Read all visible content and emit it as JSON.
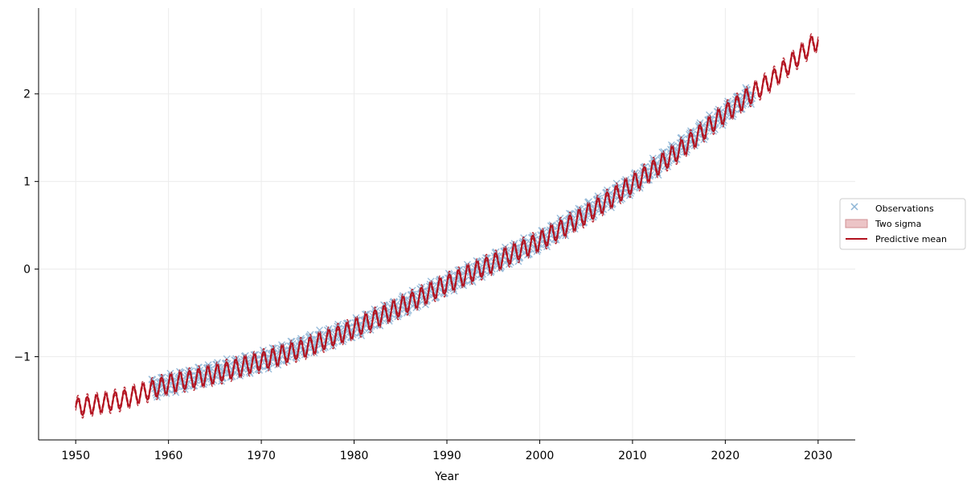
{
  "chart_data": {
    "type": "line",
    "title": "",
    "xlabel": "Year",
    "ylabel": "",
    "xlim": [
      1946,
      2034
    ],
    "ylim": [
      -1.95,
      2.98
    ],
    "x_ticks": [
      1950,
      1960,
      1970,
      1980,
      1990,
      2000,
      2010,
      2020,
      2030
    ],
    "y_ticks": [
      -1,
      0,
      1,
      2
    ],
    "y_tick_labels": [
      "−1",
      "0",
      "1",
      "2"
    ],
    "grid": true,
    "legend_position": "right",
    "series": [
      {
        "name": "Observations",
        "kind": "scatter-x",
        "x_range": [
          1958.2,
          2023.0
        ],
        "trend_points": [
          [
            1958,
            -1.37
          ],
          [
            1960,
            -1.31
          ],
          [
            1970,
            -1.05
          ],
          [
            1980,
            -0.68
          ],
          [
            1990,
            -0.17
          ],
          [
            2000,
            0.32
          ],
          [
            2010,
            0.97
          ],
          [
            2020,
            1.78
          ],
          [
            2023,
            2.02
          ]
        ],
        "seasonal_amplitude": 0.1
      },
      {
        "name": "Two sigma",
        "kind": "band",
        "x_range": [
          1950,
          2030
        ],
        "half_width": 0.035
      },
      {
        "name": "Predictive mean",
        "kind": "line",
        "x_range": [
          1950,
          2030
        ],
        "trend_points": [
          [
            1950,
            -1.58
          ],
          [
            1955,
            -1.49
          ],
          [
            1960,
            -1.31
          ],
          [
            1965,
            -1.2
          ],
          [
            1970,
            -1.05
          ],
          [
            1975,
            -0.89
          ],
          [
            1980,
            -0.68
          ],
          [
            1985,
            -0.43
          ],
          [
            1990,
            -0.17
          ],
          [
            1995,
            0.07
          ],
          [
            2000,
            0.32
          ],
          [
            2005,
            0.62
          ],
          [
            2010,
            0.97
          ],
          [
            2015,
            1.35
          ],
          [
            2020,
            1.78
          ],
          [
            2025,
            2.16
          ],
          [
            2030,
            2.62
          ]
        ],
        "seasonal_amplitude": 0.1
      }
    ]
  },
  "legend": {
    "items": [
      {
        "label": "Observations",
        "color": "#8fb6d6"
      },
      {
        "label": "Two sigma",
        "color": "#e5b0b3"
      },
      {
        "label": "Predictive mean",
        "color": "#b3121f"
      }
    ]
  },
  "colors": {
    "observation": "#8fb6d6",
    "band": "#e5b0b3",
    "mean": "#b3121f",
    "grid": "#ececec",
    "axis": "#000000"
  }
}
